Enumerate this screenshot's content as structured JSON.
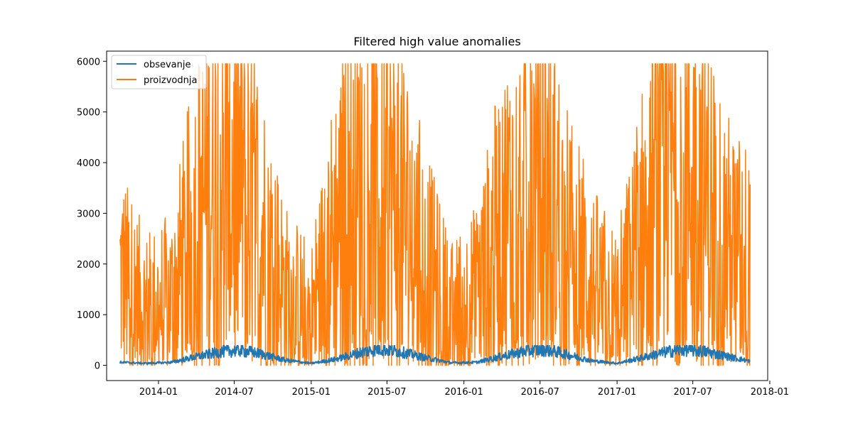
{
  "chart_data": {
    "type": "line",
    "title": "Filtered high value anomalies",
    "xlabel": "",
    "ylabel": "",
    "x_range": [
      "2013-10-01",
      "2017-11-15"
    ],
    "xlim": [
      "2013-08-30",
      "2017-12-27"
    ],
    "ylim": [
      -300,
      6200
    ],
    "x_ticks": [
      {
        "date": "2014-01-01",
        "label": "2014-01"
      },
      {
        "date": "2014-07-01",
        "label": "2014-07"
      },
      {
        "date": "2015-01-01",
        "label": "2015-01"
      },
      {
        "date": "2015-07-01",
        "label": "2015-07"
      },
      {
        "date": "2016-01-01",
        "label": "2016-01"
      },
      {
        "date": "2016-07-01",
        "label": "2016-07"
      },
      {
        "date": "2017-01-01",
        "label": "2017-01"
      },
      {
        "date": "2017-07-01",
        "label": "2017-07"
      },
      {
        "date": "2018-01-01",
        "label": "2018-01"
      }
    ],
    "y_ticks": [
      0,
      1000,
      2000,
      3000,
      4000,
      5000,
      6000
    ],
    "grid": false,
    "legend_position": "upper-left",
    "series": [
      {
        "name": "obsevanje",
        "color": "#1f77b4",
        "x": [
          "2013-10-01",
          "2013-12-01",
          "2014-02-01",
          "2014-04-01",
          "2014-06-01",
          "2014-07-15",
          "2014-09-01",
          "2014-11-01",
          "2015-01-01",
          "2015-03-01",
          "2015-05-01",
          "2015-06-15",
          "2015-08-01",
          "2015-10-01",
          "2015-12-01",
          "2016-02-01",
          "2016-04-01",
          "2016-06-01",
          "2016-07-15",
          "2016-09-01",
          "2016-11-01",
          "2017-01-01",
          "2017-03-01",
          "2017-05-01",
          "2017-06-15",
          "2017-08-01",
          "2017-10-01",
          "2017-11-15"
        ],
        "values": [
          60,
          40,
          60,
          170,
          270,
          300,
          230,
          100,
          40,
          120,
          260,
          330,
          270,
          150,
          50,
          60,
          180,
          290,
          320,
          220,
          90,
          40,
          150,
          270,
          320,
          270,
          160,
          80
        ]
      },
      {
        "name": "proizvodnja",
        "color": "#ff7f0e",
        "x": [
          "2013-10-01",
          "2013-12-01",
          "2014-02-01",
          "2014-04-01",
          "2014-06-01",
          "2014-07-15",
          "2014-09-01",
          "2014-11-01",
          "2015-01-01",
          "2015-03-01",
          "2015-05-01",
          "2015-06-15",
          "2015-08-01",
          "2015-10-01",
          "2015-12-01",
          "2016-02-01",
          "2016-04-01",
          "2016-06-01",
          "2016-07-15",
          "2016-09-01",
          "2016-11-01",
          "2017-01-01",
          "2017-03-01",
          "2017-05-01",
          "2017-06-15",
          "2017-08-01",
          "2017-10-01",
          "2017-11-15"
        ],
        "values": [
          1800,
          1100,
          1300,
          2900,
          3900,
          3700,
          2800,
          1400,
          1000,
          2700,
          3700,
          3700,
          3200,
          2000,
          1000,
          1400,
          2800,
          3500,
          3600,
          2500,
          1600,
          1100,
          2600,
          3900,
          3900,
          3300,
          2200,
          2000
        ]
      }
    ]
  }
}
